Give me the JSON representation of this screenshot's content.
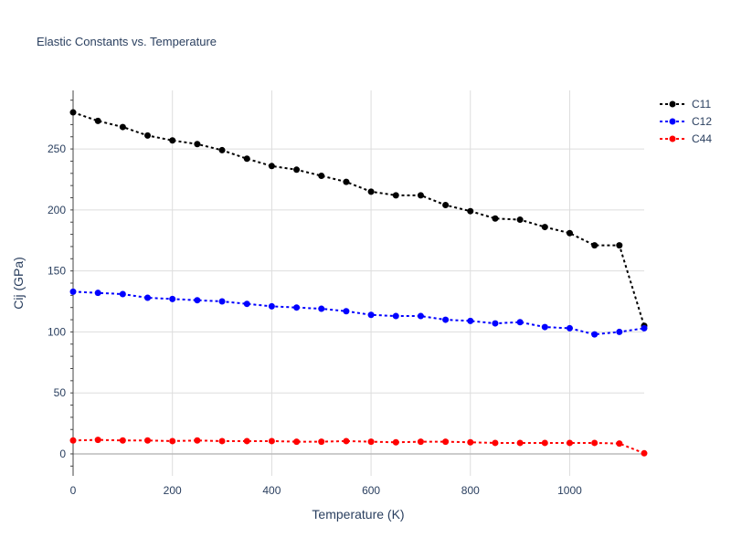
{
  "chart_data": {
    "type": "line",
    "title": "Elastic Constants vs. Temperature",
    "xlabel": "Temperature (K)",
    "ylabel": "Cij (GPa)",
    "xlim": [
      0,
      1150
    ],
    "ylim": [
      -18,
      298
    ],
    "xticks": [
      0,
      200,
      400,
      600,
      800,
      1000
    ],
    "yticks": [
      0,
      50,
      100,
      150,
      200,
      250
    ],
    "grid": true,
    "legend_position": "top-right",
    "x": [
      0,
      50,
      100,
      150,
      200,
      250,
      300,
      350,
      400,
      450,
      500,
      550,
      600,
      650,
      700,
      750,
      800,
      850,
      900,
      950,
      1000,
      1050,
      1100,
      1150
    ],
    "series": [
      {
        "name": "C11",
        "color": "#000000",
        "values": [
          280,
          273,
          268,
          261,
          257,
          254,
          249,
          242,
          236,
          233,
          228,
          223,
          215,
          212,
          212,
          204,
          199,
          193,
          192,
          186,
          181,
          171,
          171,
          105
        ]
      },
      {
        "name": "C12",
        "color": "#0000ff",
        "values": [
          133,
          132,
          131,
          128,
          127,
          126,
          125,
          123,
          121,
          120,
          119,
          117,
          114,
          113,
          113,
          110,
          109,
          107,
          108,
          104,
          103,
          98,
          100,
          103
        ]
      },
      {
        "name": "C44",
        "color": "#ff0000",
        "values": [
          11,
          11.5,
          11,
          11,
          10.5,
          11,
          10.5,
          10.5,
          10.5,
          10,
          10,
          10.5,
          10,
          9.5,
          10,
          10,
          9.5,
          9,
          9,
          9,
          9,
          9,
          8.5,
          0.5
        ]
      }
    ]
  }
}
